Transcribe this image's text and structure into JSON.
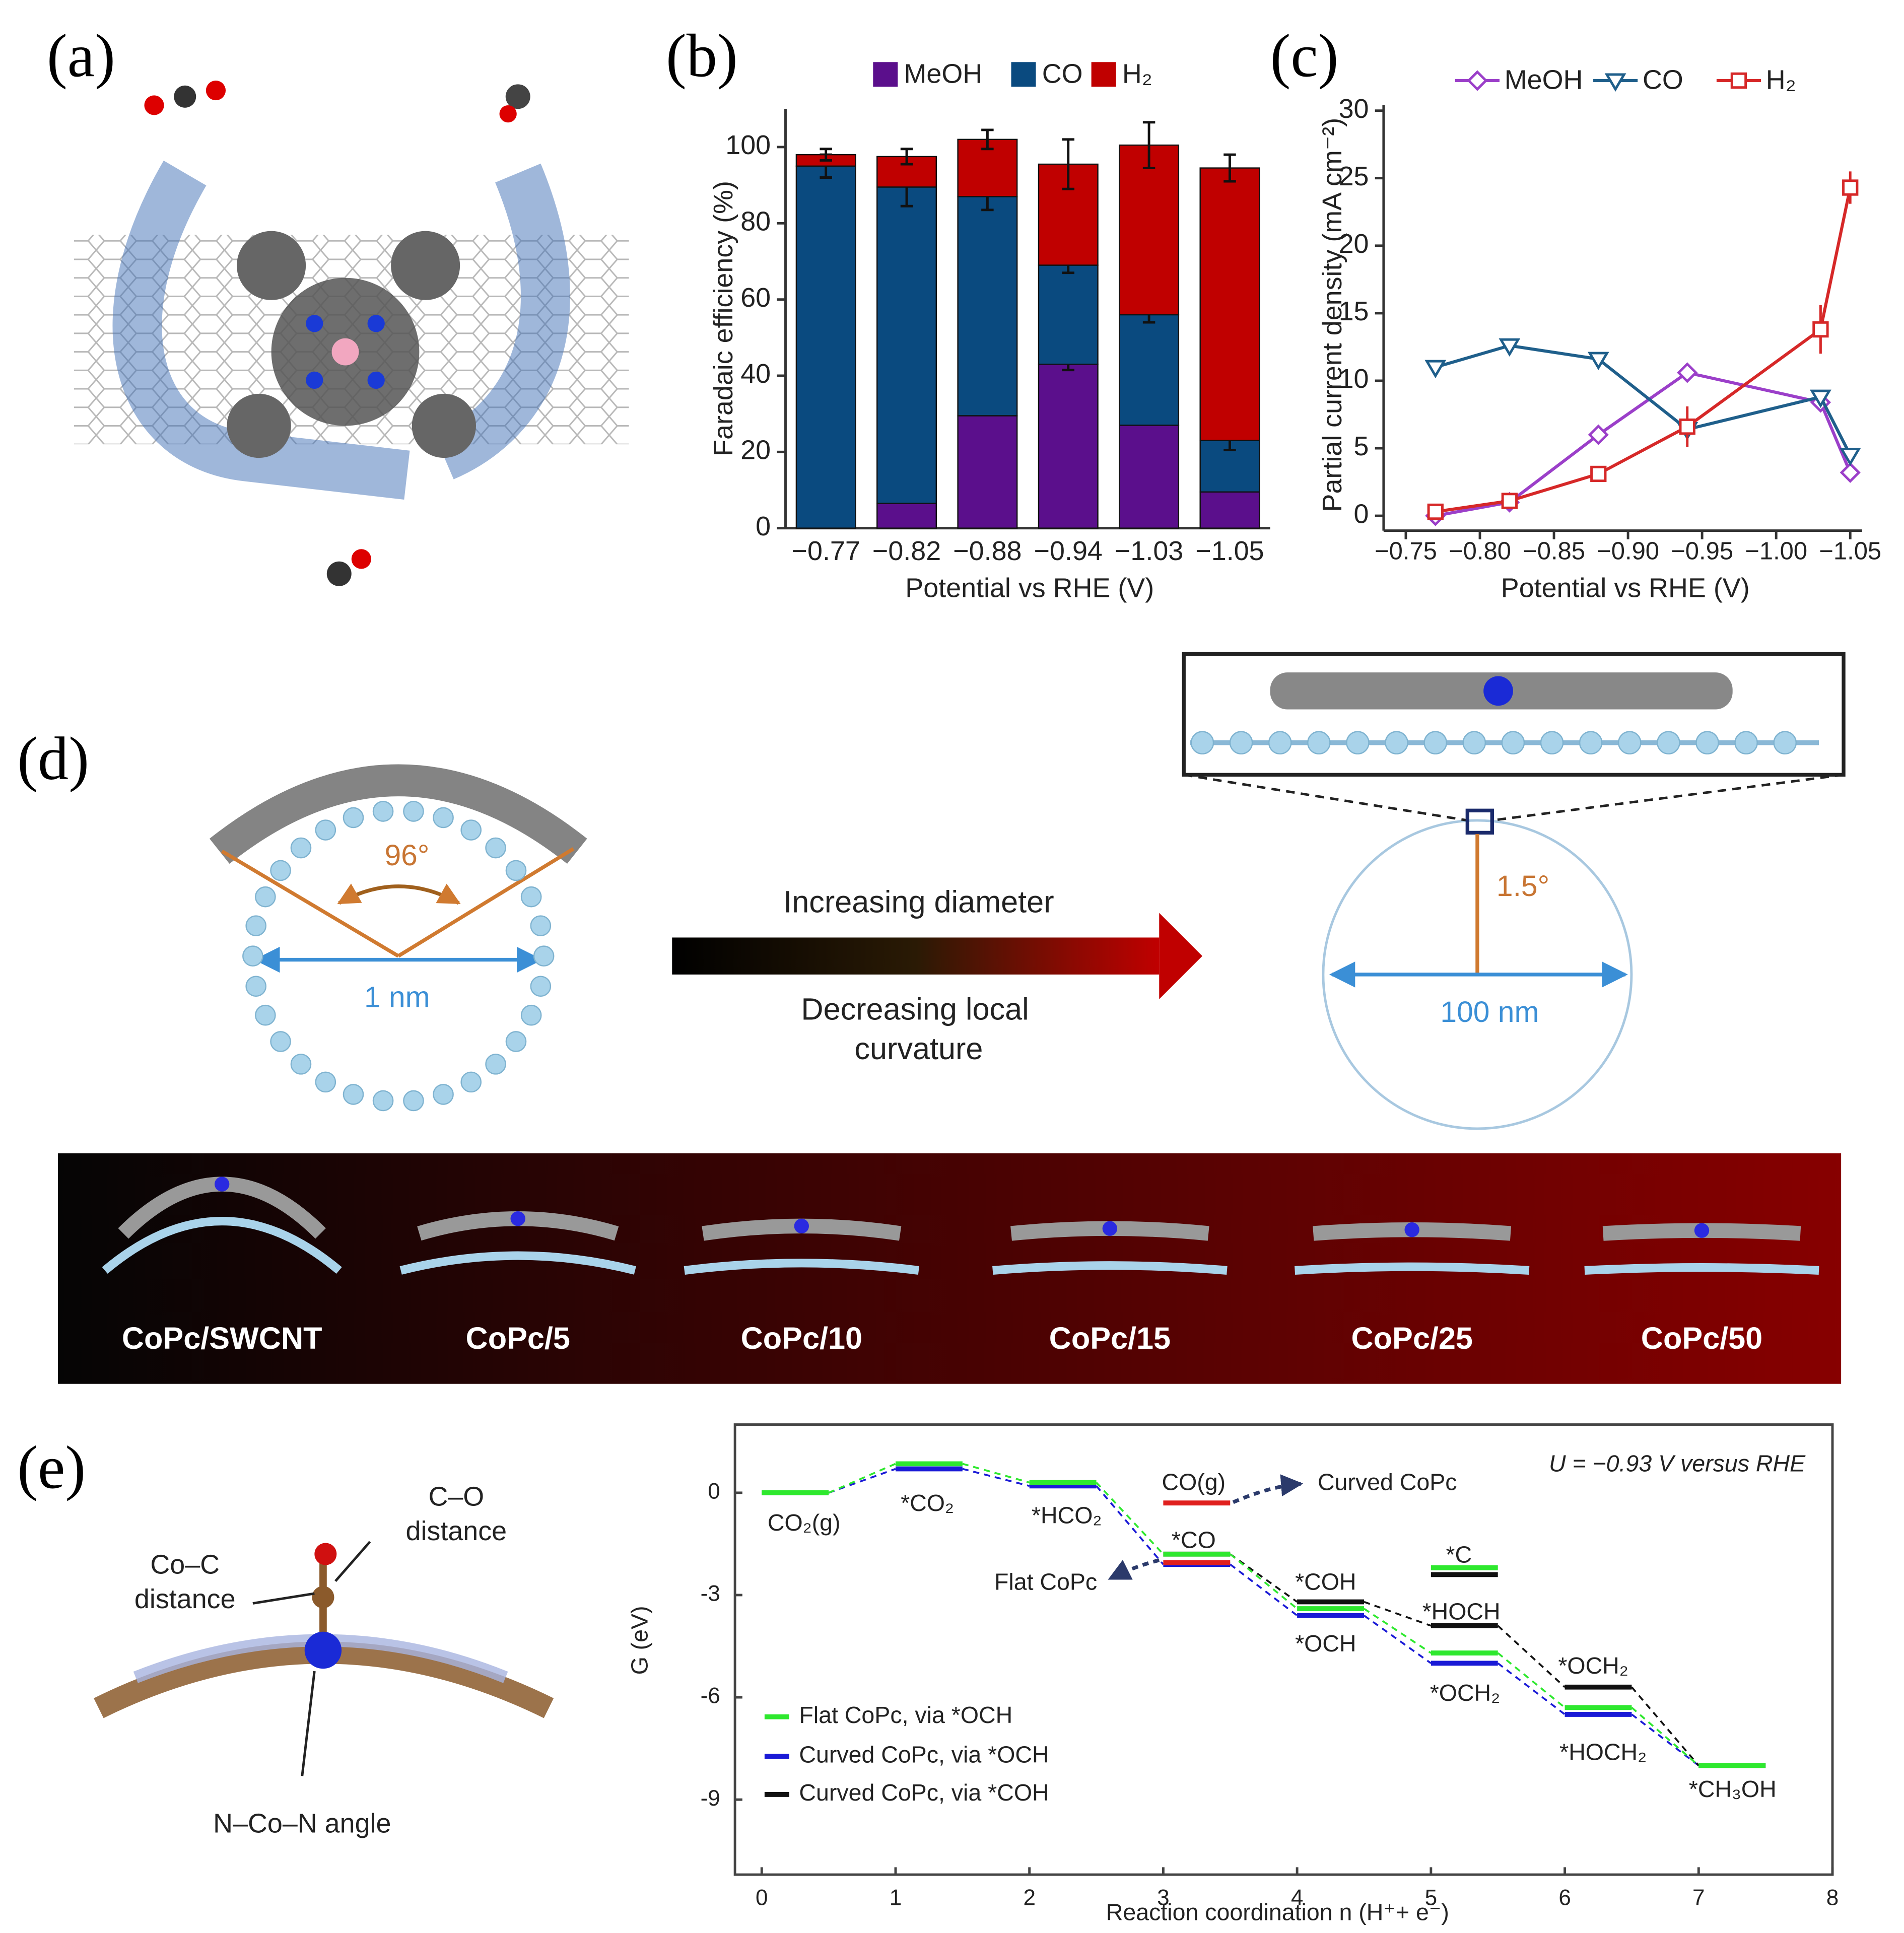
{
  "figure": {
    "panel_labels": [
      "(a)",
      "(b)",
      "(c)",
      "(d)",
      "(e)"
    ],
    "d": {
      "angle_small": "96°",
      "diameter_small": "1 nm",
      "arrow_top": "Increasing diameter",
      "arrow_bottom": [
        "Decreasing local",
        "curvature"
      ],
      "angle_large": "1.5°",
      "diameter_large": "100 nm",
      "samples": [
        "CoPc/SWCNT",
        "CoPc/5",
        "CoPc/10",
        "CoPc/15",
        "CoPc/25",
        "CoPc/50"
      ]
    },
    "e_structure": {
      "co_label": [
        "C–O",
        "distance"
      ],
      "coc_label": [
        "Co–C",
        "distance"
      ],
      "angle_label": "N–Co–N angle"
    }
  },
  "chart_data": [
    {
      "type": "stacked-bar",
      "ylabel": "Faradaic efficiency (%)",
      "xlabel": "Potential vs RHE (V)",
      "categories": [
        "−0.77",
        "−0.82",
        "−0.88",
        "−0.94",
        "−1.03",
        "−1.05"
      ],
      "series": [
        {
          "name": "MeOH",
          "color": "#5b0f8c",
          "values": [
            0,
            6.5,
            29.5,
            43,
            27,
            9.5
          ],
          "errors": [
            null,
            null,
            null,
            1.5,
            null,
            null
          ]
        },
        {
          "name": "CO",
          "color": "#0a4a7f",
          "values": [
            95,
            83,
            57.5,
            26,
            29,
            13.5
          ],
          "errors": [
            3,
            5,
            3.5,
            2,
            2,
            2.5
          ]
        },
        {
          "name": "H₂",
          "color": "#c00000",
          "values": [
            3,
            8,
            15,
            26.5,
            44.5,
            71.5
          ],
          "errors": [
            1.5,
            2,
            2.5,
            6.5,
            6,
            3.5
          ]
        }
      ],
      "ylim": [
        0,
        110
      ],
      "yticks": [
        0,
        20,
        40,
        60,
        80,
        100
      ],
      "legend": "top"
    },
    {
      "type": "line",
      "ylabel": "Partial current density (mA cm⁻²)",
      "xlabel": "Potential vs RHE (V)",
      "x": [
        -0.77,
        -0.82,
        -0.88,
        -0.94,
        -1.03,
        -1.05
      ],
      "series": [
        {
          "name": "MeOH",
          "color": "#9b3fc9",
          "marker": "diamond",
          "values": [
            0,
            1,
            6,
            10.6,
            8.4,
            3.2
          ]
        },
        {
          "name": "CO",
          "color": "#1f5f8b",
          "marker": "triangle-down",
          "values": [
            11,
            12.6,
            11.6,
            6.4,
            8.8,
            4.5
          ]
        },
        {
          "name": "H₂",
          "color": "#d62828",
          "marker": "square",
          "values": [
            0.3,
            1.1,
            3.1,
            6.6,
            13.8,
            24.3
          ],
          "errors": [
            0.5,
            0.3,
            0.3,
            1.5,
            1.8,
            1.2
          ]
        }
      ],
      "xlim": [
        -0.735,
        -1.058
      ],
      "ylim": [
        -1.1,
        30.4
      ],
      "xticks": [
        {
          "value": -0.75,
          "label": "−0.75"
        },
        {
          "value": -0.8,
          "label": "−0.80"
        },
        {
          "value": -0.85,
          "label": "−0.85"
        },
        {
          "value": -0.9,
          "label": "−0.90"
        },
        {
          "value": -0.95,
          "label": "−0.95"
        },
        {
          "value": -1.0,
          "label": "−1.00"
        },
        {
          "value": -1.05,
          "label": "−1.05"
        }
      ],
      "yticks": [
        0,
        5,
        10,
        15,
        20,
        25,
        30
      ],
      "legend": "top"
    },
    {
      "type": "energy-levels",
      "ylabel": "G (eV)",
      "xlabel": "Reaction coordination n (H⁺+ e⁻)",
      "series": [
        {
          "name": "Curved CoPc, via *OCH",
          "color": "#1a1ad6",
          "x": [
            0,
            1,
            2,
            3,
            4,
            5,
            6,
            7
          ],
          "values": [
            0,
            0.7,
            0.2,
            -2.1,
            -3.6,
            -5.0,
            -6.5,
            -8.0
          ]
        },
        {
          "name": "Curved CoPc, via *COH",
          "color": "#111111",
          "x": [
            3,
            4,
            5,
            6,
            7
          ],
          "values": [
            -1.8,
            -3.2,
            -3.9,
            -5.7,
            -8.0
          ]
        },
        {
          "name": "Flat CoPc, via *OCH",
          "color": "#2ee82e",
          "x": [
            0,
            1,
            2,
            3,
            4,
            5,
            6,
            7
          ],
          "values": [
            0,
            0.85,
            0.3,
            -1.8,
            -3.4,
            -4.7,
            -6.3,
            -8.0
          ]
        }
      ],
      "levels": [
        {
          "x": 3,
          "value": -0.3,
          "color": "#e0201e"
        },
        {
          "x": 3,
          "value": -2.05,
          "color": "#e0201e"
        },
        {
          "x": 5,
          "value": -2.2,
          "color": "#2ee82e"
        },
        {
          "x": 5,
          "value": -2.4,
          "color": "#111111"
        }
      ],
      "annotations": [
        "CO₂(g)",
        "*CO₂",
        "*HCO₂",
        "CO(g)",
        "Curved CoPc",
        "*CO",
        "Flat CoPc",
        "*COH",
        "*OCH",
        "*C",
        "*HOCH",
        "*OCH₂",
        "*OCH₂",
        "*HOCH₂",
        "*CH₃OH",
        "U = −0.93 V versus RHE"
      ],
      "xlim": [
        -0.2,
        8
      ],
      "ylim": [
        -11.2,
        2
      ],
      "xticks": [
        0,
        1,
        2,
        3,
        4,
        5,
        6,
        7,
        8
      ],
      "yticks": [
        0,
        -3,
        -6,
        -9
      ],
      "legend": "lower left"
    }
  ]
}
